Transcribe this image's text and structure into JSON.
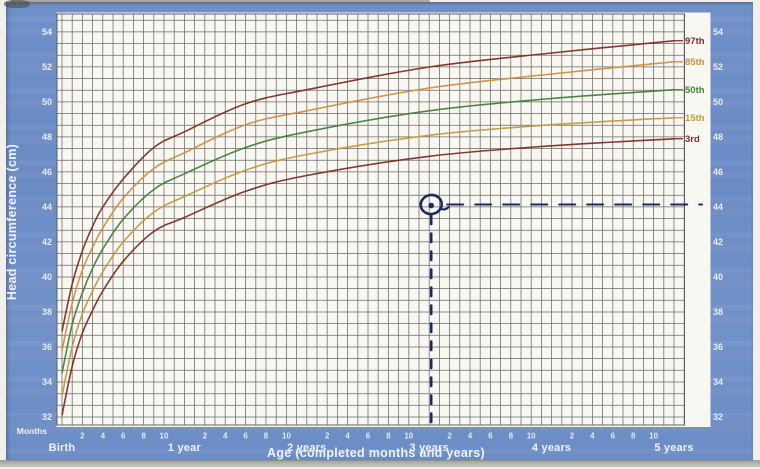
{
  "colors": {
    "panel_blue": "#6c8dc6",
    "plot_bg": "#f8f7f2",
    "grid": "#53524b",
    "tick_text": "#eef3fb",
    "p97": "#7d2e26",
    "p85": "#cf8f3e",
    "p50": "#44803d",
    "p15": "#c39a3f",
    "p3": "#7d2e26",
    "annotation_navy": "#1c2a5e",
    "scan_strip": "#a9a89c"
  },
  "chart_data": {
    "type": "line",
    "title": "",
    "xlabel": "Age (completed months and years)",
    "ylabel": "Head circumference (cm)",
    "grid": true,
    "legend_position": "right edge curve labels",
    "x_axis": {
      "months_caption": "Months",
      "unit": "months",
      "range_months": [
        0,
        61
      ],
      "year_tick_labels": [
        "Birth",
        "1 year",
        "2 years",
        "3 years",
        "4 years",
        "5 years"
      ],
      "year_tick_months": [
        0,
        12,
        24,
        36,
        48,
        60
      ],
      "minor_month_labels": [
        2,
        4,
        6,
        8,
        10
      ]
    },
    "y_axis": {
      "unit": "cm",
      "range": [
        32,
        54
      ],
      "tick_values": [
        54,
        52,
        50,
        48,
        46,
        44,
        42,
        40,
        38,
        36,
        34,
        32
      ],
      "labels_on_both_sides": true
    },
    "anchor_months": [
      0,
      1,
      2,
      3,
      4,
      6,
      9,
      12,
      18,
      24,
      36,
      48,
      60
    ],
    "series": [
      {
        "name": "97th",
        "color_key": "p97",
        "values": [
          36.9,
          39.6,
          41.5,
          42.9,
          44.0,
          45.6,
          47.4,
          48.3,
          49.9,
          50.7,
          52.0,
          52.8,
          53.5
        ]
      },
      {
        "name": "85th",
        "color_key": "p85",
        "values": [
          35.8,
          38.5,
          40.4,
          41.7,
          42.8,
          44.5,
          46.2,
          47.1,
          48.7,
          49.5,
          50.8,
          51.6,
          52.3
        ]
      },
      {
        "name": "50th",
        "color_key": "p50",
        "values": [
          34.5,
          37.3,
          39.1,
          40.5,
          41.6,
          43.3,
          45.0,
          45.9,
          47.4,
          48.3,
          49.5,
          50.2,
          50.7
        ]
      },
      {
        "name": "15th",
        "color_key": "p15",
        "values": [
          33.2,
          36.0,
          37.9,
          39.2,
          40.3,
          42.0,
          43.7,
          44.6,
          46.1,
          47.0,
          48.1,
          48.7,
          49.1
        ]
      },
      {
        "name": "3rd",
        "color_key": "p3",
        "values": [
          32.1,
          34.9,
          36.8,
          38.1,
          39.2,
          40.9,
          42.6,
          43.4,
          44.9,
          45.8,
          46.9,
          47.5,
          47.9
        ]
      }
    ],
    "annotation_point": {
      "age_label": "3 years",
      "x_months": 36,
      "y_cm": 44,
      "style": "hand-drawn pen circle with dashed vertical line to x-axis and dashed horizontal line to right y-axis"
    }
  }
}
